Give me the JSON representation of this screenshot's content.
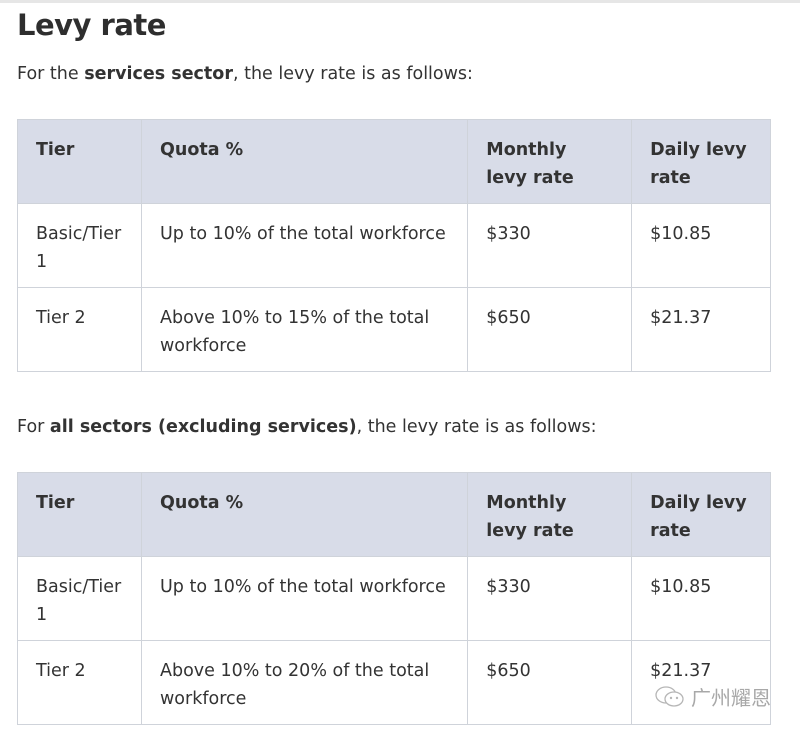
{
  "title": "Levy rate",
  "section1": {
    "intro_prefix": "For the ",
    "intro_bold": "services sector",
    "intro_suffix": ", the levy rate is as follows:",
    "headers": [
      "Tier",
      "Quota %",
      "Monthly levy rate",
      "Daily levy rate"
    ],
    "rows": [
      [
        "Basic/Tier 1",
        "Up to 10% of the total workforce",
        "$330",
        "$10.85"
      ],
      [
        "Tier 2",
        "Above 10% to 15% of the total workforce",
        "$650",
        "$21.37"
      ]
    ]
  },
  "section2": {
    "intro_prefix": "For ",
    "intro_bold": "all sectors (excluding services)",
    "intro_suffix": ", the levy rate is as follows:",
    "headers": [
      "Tier",
      "Quota %",
      "Monthly levy rate",
      "Daily levy rate"
    ],
    "rows": [
      [
        "Basic/Tier 1",
        "Up to 10% of the total workforce",
        "$330",
        "$10.85"
      ],
      [
        "Tier 2",
        "Above 10% to 20% of the total workforce",
        "$650",
        "$21.37"
      ]
    ]
  },
  "watermark": {
    "icon": "wechat-icon",
    "text": "广州耀恩"
  }
}
